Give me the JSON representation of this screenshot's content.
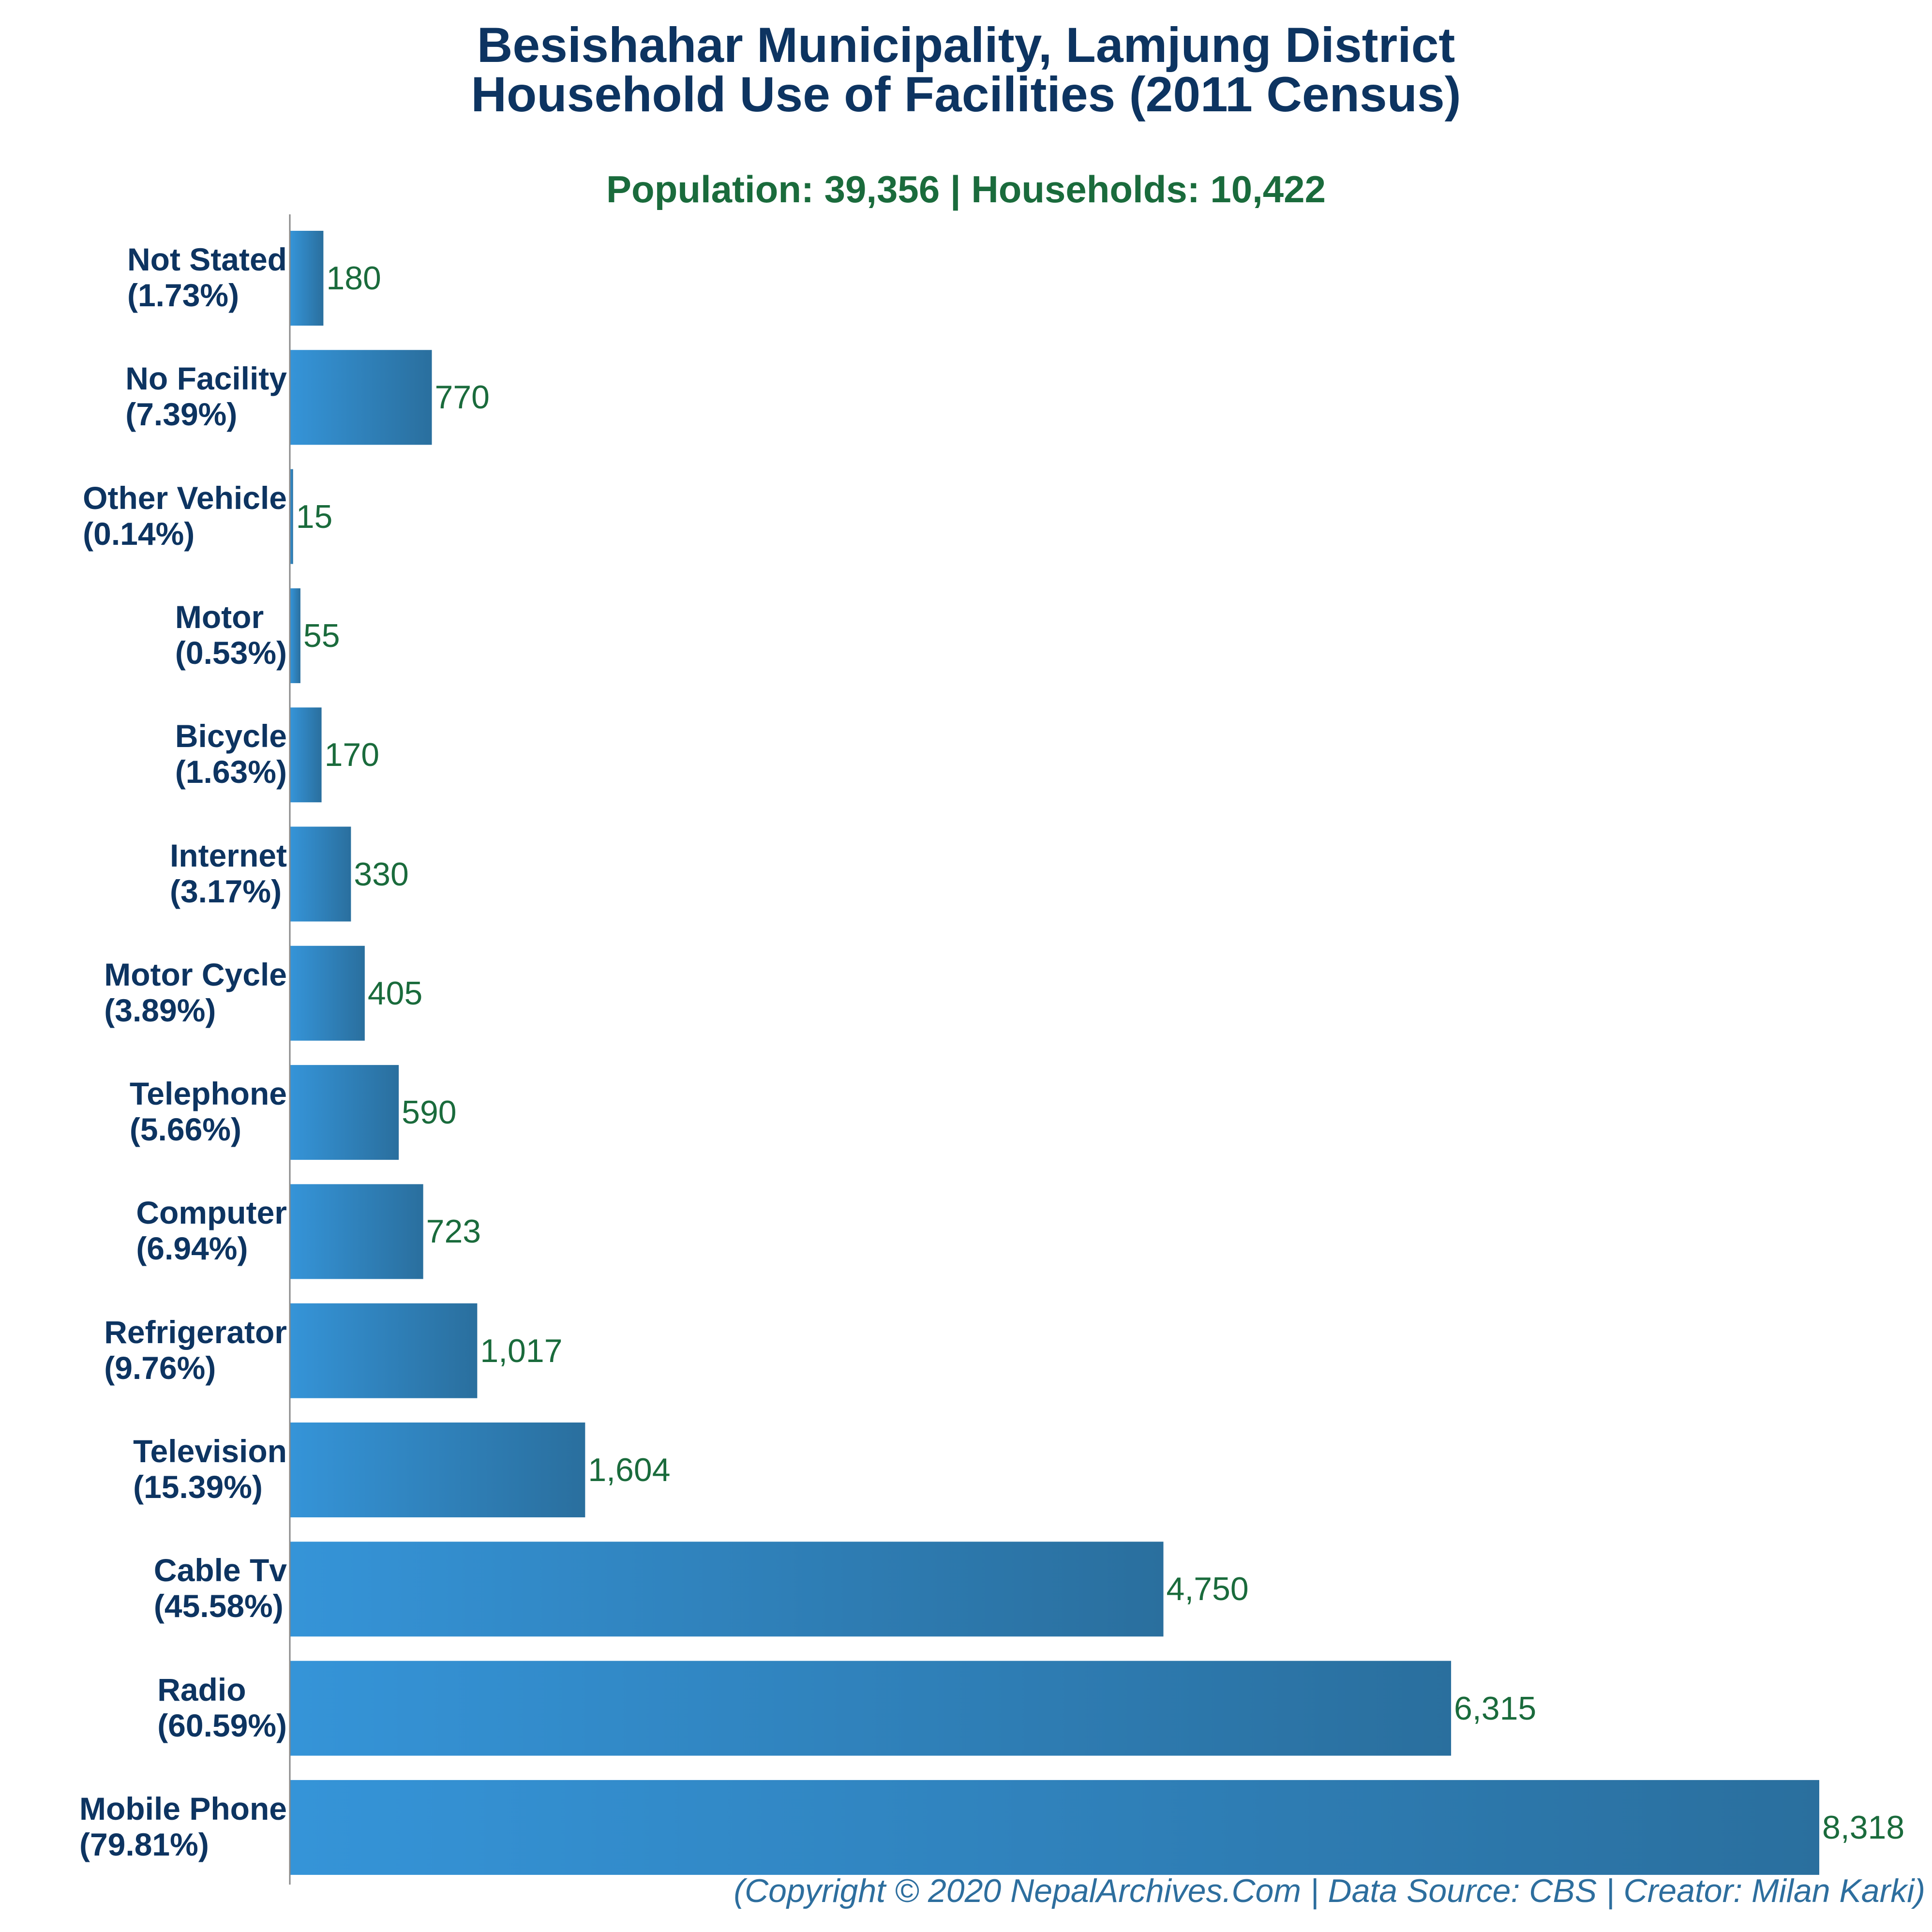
{
  "title_line_1": "Besishahar Municipality, Lamjung District",
  "title_line_2": "Household Use of Facilities (2011 Census)",
  "subtitle": "Population: 39,356 | Households: 10,422",
  "footer": "(Copyright © 2020 NepalArchives.Com | Data Source: CBS | Creator: Milan Karki)",
  "colors": {
    "bar_gradient_start": "#3594d8",
    "bar_gradient_end": "#2a6f9e",
    "title": "#0d3461",
    "subtitle": "#1a6b3c",
    "value_label": "#1a6b3c",
    "footer": "#2d6e9e",
    "axis": "#888888"
  },
  "chart_data": {
    "type": "bar",
    "orientation": "horizontal",
    "title": "Besishahar Municipality, Lamjung District Household Use of Facilities (2011 Census)",
    "subtitle": "Population: 39,356 | Households: 10,422",
    "xlabel": "",
    "ylabel": "",
    "grid": false,
    "xlim": [
      0,
      8318
    ],
    "categories": [
      {
        "name": "Not Stated",
        "percent": "(1.73%)"
      },
      {
        "name": "No Facility",
        "percent": "(7.39%)"
      },
      {
        "name": "Other Vehicle",
        "percent": "(0.14%)"
      },
      {
        "name": "Motor",
        "percent": "(0.53%)"
      },
      {
        "name": "Bicycle",
        "percent": "(1.63%)"
      },
      {
        "name": "Internet",
        "percent": "(3.17%)"
      },
      {
        "name": "Motor Cycle",
        "percent": "(3.89%)"
      },
      {
        "name": "Telephone",
        "percent": "(5.66%)"
      },
      {
        "name": "Computer",
        "percent": "(6.94%)"
      },
      {
        "name": "Refrigerator",
        "percent": "(9.76%)"
      },
      {
        "name": "Television",
        "percent": "(15.39%)"
      },
      {
        "name": "Cable Tv",
        "percent": "(45.58%)"
      },
      {
        "name": "Radio",
        "percent": "(60.59%)"
      },
      {
        "name": "Mobile Phone",
        "percent": "(79.81%)"
      }
    ],
    "values": [
      180,
      770,
      15,
      55,
      170,
      330,
      405,
      590,
      723,
      1017,
      1604,
      4750,
      6315,
      8318
    ],
    "value_labels": [
      "180",
      "770",
      "15",
      "55",
      "170",
      "330",
      "405",
      "590",
      "723",
      "1,017",
      "1,604",
      "4,750",
      "6,315",
      "8,318"
    ]
  }
}
